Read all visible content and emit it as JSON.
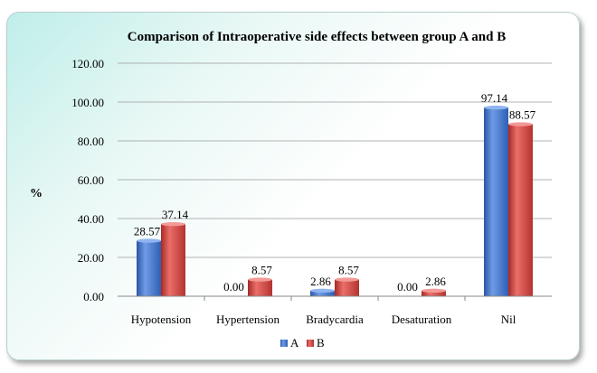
{
  "chart_data": {
    "type": "bar",
    "title": "Comparison of Intraoperative side effects between group A and B",
    "ylabel": "%",
    "xlabel": "",
    "categories": [
      "Hypotension",
      "Hypertension",
      "Bradycardia",
      "Desaturation",
      "Nil"
    ],
    "series": [
      {
        "name": "A",
        "values": [
          28.57,
          0.0,
          2.86,
          0.0,
          97.14
        ],
        "labels": [
          "28.57",
          "0.00",
          "2.86",
          "0.00",
          "97.14"
        ],
        "color": "#3f73c9"
      },
      {
        "name": "B",
        "values": [
          37.14,
          8.57,
          8.57,
          2.86,
          88.57
        ],
        "labels": [
          "37.14",
          "8.57",
          "8.57",
          "2.86",
          "88.57"
        ],
        "color": "#d0403b"
      }
    ],
    "ylim": [
      0,
      120
    ],
    "yticks": [
      "0.00",
      "20.00",
      "40.00",
      "60.00",
      "80.00",
      "100.00",
      "120.00"
    ],
    "grid": true,
    "legend_position": "bottom"
  }
}
